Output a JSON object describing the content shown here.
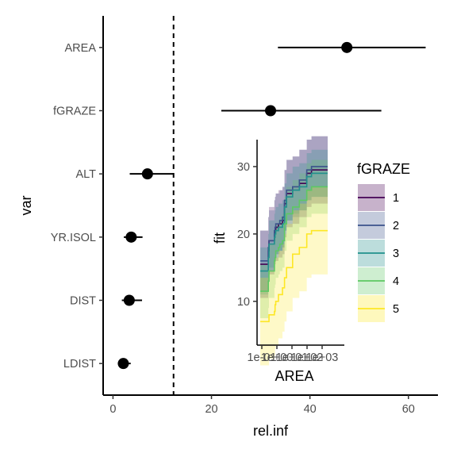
{
  "chart_data": [
    {
      "type": "forest",
      "xlabel": "rel.inf",
      "ylabel": "var",
      "xlim": [
        -2,
        66
      ],
      "xticks": [
        0,
        20,
        40,
        60
      ],
      "reference_line": 12.3,
      "categories": [
        "AREA",
        "fGRAZE",
        "ALT",
        "YR.ISOL",
        "DIST",
        "LDIST"
      ],
      "values": [
        47.5,
        32.0,
        7.0,
        3.7,
        3.3,
        2.1
      ],
      "lower": [
        33.5,
        22.0,
        3.4,
        2.2,
        1.8,
        1.0
      ],
      "upper": [
        63.5,
        54.5,
        12.4,
        6.0,
        5.9,
        3.6
      ]
    },
    {
      "type": "step-line",
      "xlabel": "AREA",
      "ylabel": "fit",
      "ylim": [
        3.5,
        34
      ],
      "yticks": [
        10,
        20,
        30
      ],
      "xticks": [
        "1e-01",
        "1e+00",
        "1e+01",
        "1e+02",
        "1e+03"
      ],
      "legend": {
        "title": "fGRAZE",
        "position": "right",
        "entries": [
          "1",
          "2",
          "3",
          "4",
          "5"
        ]
      },
      "colors": [
        "#440154",
        "#3b528b",
        "#21908c",
        "#5dc863",
        "#fde725"
      ],
      "x": [
        0,
        0.11,
        0.12,
        0.13,
        0.15,
        0.21,
        0.22,
        0.23,
        0.27,
        0.29,
        0.33,
        0.36,
        0.39,
        0.48,
        0.58,
        0.69,
        0.76,
        0.81,
        0.85,
        0.9,
        1.0
      ],
      "series": [
        {
          "name": "1",
          "values": [
            15.5,
            15.5,
            17.5,
            19.0,
            19.0,
            20.0,
            20.5,
            21.0,
            21.5,
            21.5,
            22.0,
            24.5,
            26.0,
            26.5,
            27.5,
            29.0,
            29.5,
            29.5,
            29.5,
            29.5,
            29.5
          ]
        },
        {
          "name": "2",
          "values": [
            16.0,
            16.0,
            18.0,
            19.0,
            19.0,
            20.5,
            21.0,
            21.5,
            21.5,
            22.0,
            22.5,
            25.0,
            26.5,
            27.0,
            28.0,
            29.5,
            30.0,
            30.0,
            30.0,
            30.0,
            30.0
          ]
        },
        {
          "name": "3",
          "values": [
            14.5,
            14.5,
            16.5,
            18.5,
            18.5,
            19.5,
            20.0,
            20.5,
            21.0,
            21.0,
            21.5,
            24.0,
            25.5,
            26.5,
            27.0,
            28.5,
            29.0,
            29.0,
            29.0,
            29.0,
            29.0
          ]
        },
        {
          "name": "4",
          "values": [
            11.5,
            11.5,
            13.0,
            14.5,
            14.5,
            16.0,
            16.5,
            17.5,
            18.0,
            18.5,
            19.0,
            21.5,
            23.0,
            24.0,
            25.0,
            26.5,
            27.0,
            27.0,
            27.0,
            27.0,
            27.0
          ]
        },
        {
          "name": "5",
          "values": [
            7.0,
            7.0,
            7.0,
            8.0,
            8.0,
            8.5,
            9.5,
            10.0,
            11.0,
            11.0,
            12.0,
            13.5,
            15.0,
            17.0,
            18.0,
            20.0,
            20.5,
            20.5,
            20.5,
            20.5,
            20.5
          ]
        }
      ]
    }
  ]
}
